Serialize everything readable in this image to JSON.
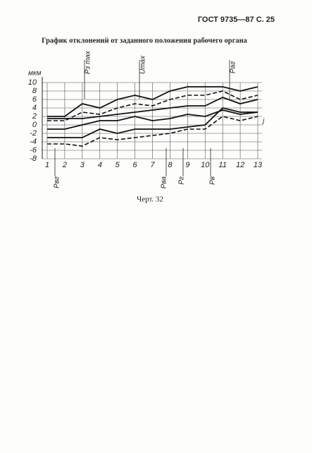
{
  "header": "ГОСТ 9735—87 С. 25",
  "caption": "Черт. 32",
  "chart_data": {
    "type": "line",
    "title": "График отклонений от заданного положения рабочего органа",
    "y_label": "мкм",
    "categories": [
      "1",
      "2",
      "3",
      "4",
      "5",
      "6",
      "7",
      "8",
      "9",
      "10",
      "11",
      "12",
      "13"
    ],
    "ylim": [
      -8,
      10
    ],
    "yticks": [
      -8,
      -6,
      -4,
      -2,
      0,
      2,
      4,
      6,
      8,
      10
    ],
    "grid": true,
    "annotations": [
      "Pз max",
      "Umax",
      "Pаг",
      "Pвг",
      "Pва",
      "Pг",
      "Pв",
      "j"
    ],
    "series": [
      {
        "color": "#111",
        "style": "solid",
        "values": [
          2,
          2,
          5,
          4,
          6,
          7,
          6,
          8,
          9,
          9,
          9,
          8,
          9
        ]
      },
      {
        "color": "#111",
        "style": "dashed",
        "values": [
          1,
          1,
          3,
          2.5,
          4,
          5,
          4.5,
          6,
          7,
          7,
          8,
          6,
          7
        ]
      },
      {
        "color": "#111",
        "style": "solid",
        "values": [
          1.5,
          1.5,
          1.5,
          2,
          2.5,
          3,
          3.5,
          4,
          4.5,
          4.5,
          6.5,
          5,
          6
        ]
      },
      {
        "color": "#111",
        "style": "solid",
        "values": [
          -1,
          -1,
          0,
          1,
          1,
          2,
          1,
          1.5,
          2.5,
          2,
          3.5,
          2.5,
          3
        ]
      },
      {
        "color": "#111",
        "style": "solid",
        "values": [
          -3,
          -3,
          -3,
          -1,
          -2,
          -1,
          -1,
          -1,
          -0.5,
          0,
          4,
          3,
          3
        ]
      },
      {
        "color": "#111",
        "style": "dashed",
        "values": [
          -4.5,
          -4.5,
          -5,
          -3,
          -3.5,
          -3,
          -2.5,
          -2,
          -1,
          -1,
          2,
          1,
          2
        ]
      }
    ]
  }
}
